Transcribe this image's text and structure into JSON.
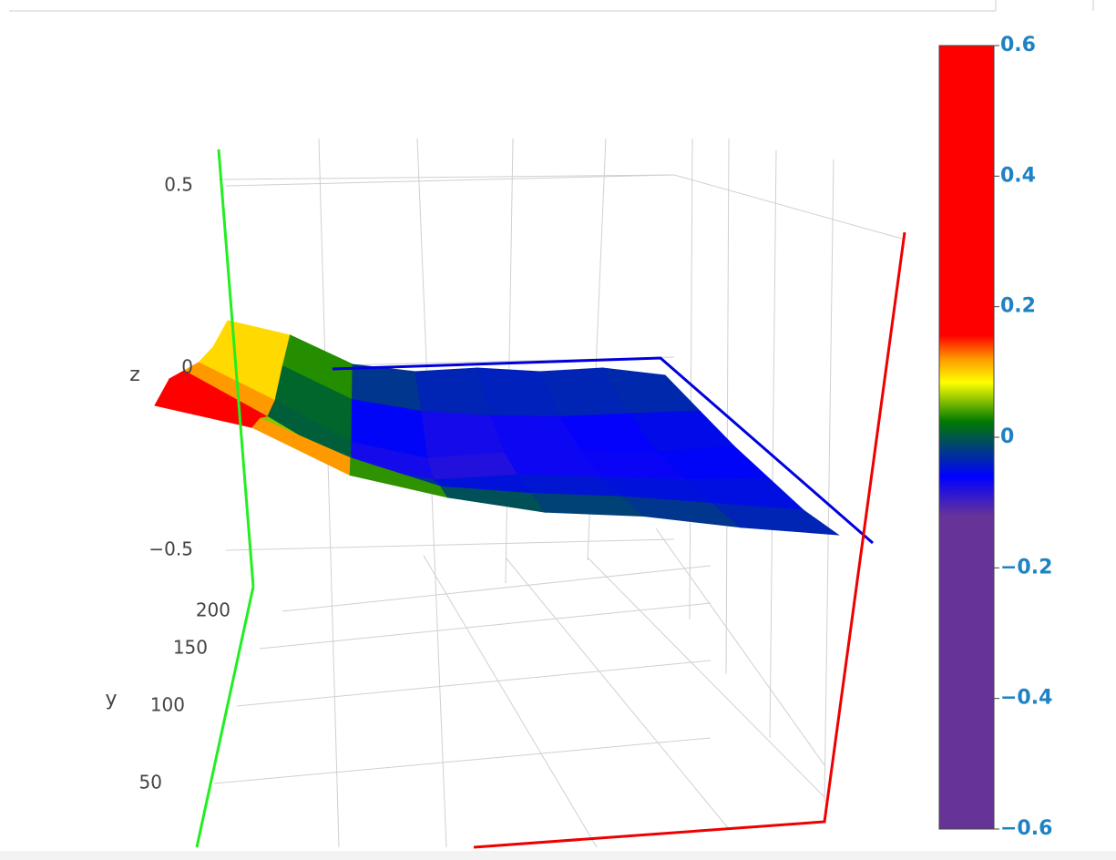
{
  "chart_data": {
    "type": "surface",
    "z_label": "z",
    "y_label": "y",
    "zlim": [
      -0.6,
      0.6
    ],
    "zticks": [
      0.5,
      0,
      {
        "value": -0.5,
        "label": "−0.5"
      }
    ],
    "yticks": [
      50,
      100,
      150,
      200
    ],
    "clim": [
      -0.6,
      0.6
    ],
    "cticks": [
      {
        "value": -0.6,
        "label": "−0.6"
      },
      {
        "value": -0.4,
        "label": "−0.4"
      },
      {
        "value": -0.2,
        "label": "−0.2"
      },
      0,
      0.2,
      0.4,
      0.6
    ],
    "colorscale": [
      [
        0,
        "#663399"
      ],
      [
        0.4,
        "#663399"
      ],
      [
        0.45,
        "#0000ff"
      ],
      [
        0.52,
        "#007a00"
      ],
      [
        0.57,
        "#ffff00"
      ],
      [
        0.6,
        "#ff9900"
      ],
      [
        0.63,
        "#ff0000"
      ],
      [
        1,
        "#ff0000"
      ]
    ],
    "z": [
      [
        0.25,
        0.2,
        0.08,
        0.03,
        0.0,
        0.0,
        -0.02,
        -0.03
      ],
      [
        0.25,
        0.15,
        0.05,
        -0.02,
        -0.03,
        -0.03,
        -0.04,
        -0.05
      ],
      [
        0.2,
        0.08,
        -0.05,
        -0.08,
        -0.06,
        -0.06,
        -0.06,
        -0.05
      ],
      [
        0.15,
        0.05,
        -0.06,
        -0.1,
        -0.08,
        -0.07,
        -0.07,
        -0.05
      ],
      [
        0.12,
        0.07,
        -0.02,
        -0.05,
        -0.06,
        -0.06,
        -0.05,
        -0.04
      ],
      [
        0.12,
        0.08,
        0.0,
        -0.02,
        -0.01,
        -0.02,
        -0.01,
        -0.03
      ]
    ]
  }
}
